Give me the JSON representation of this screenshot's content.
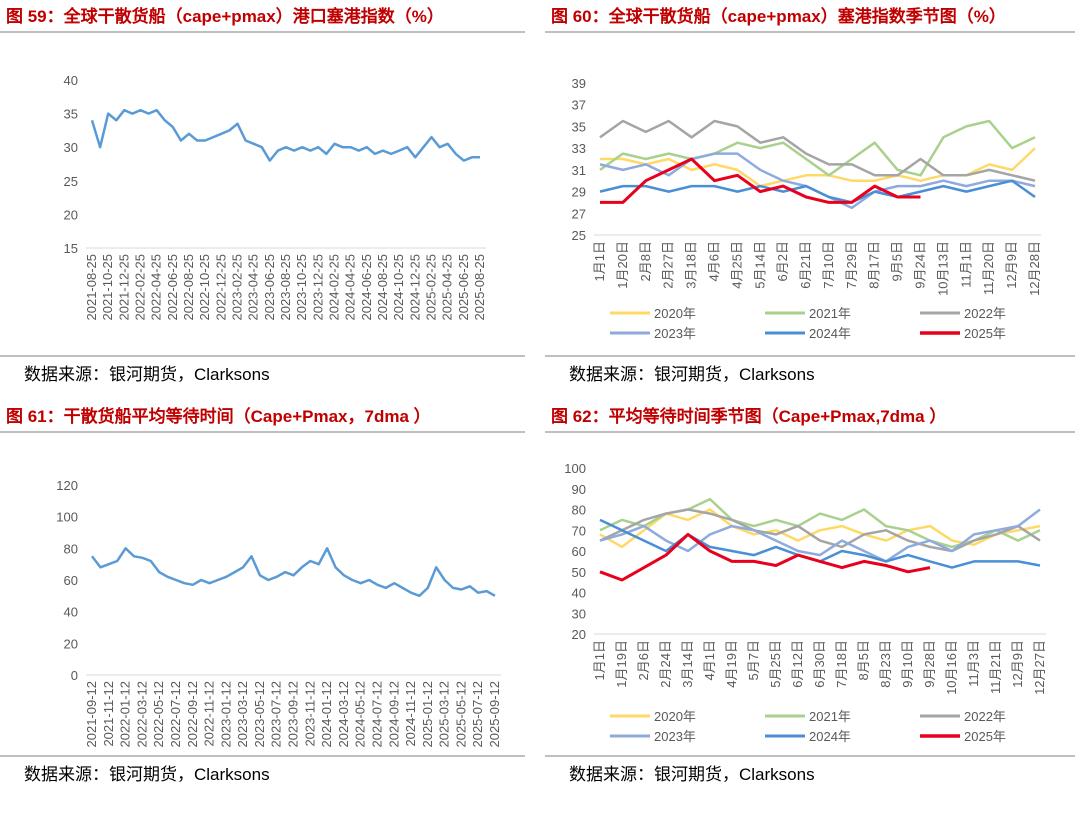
{
  "chart_data": [
    {
      "type": "line",
      "title": "图 59：全球干散货船（cape+pmax）港口塞港指数（%）",
      "source": "数据来源：银河期货，Clarksons",
      "categories": [
        "2021-08-25",
        null,
        "2021-10-25",
        null,
        "2021-12-25",
        null,
        "2022-02-25",
        null,
        "2022-04-25",
        null,
        "2022-06-25",
        null,
        "2022-08-25",
        null,
        "2022-10-25",
        null,
        "2022-12-25",
        null,
        "2023-02-25",
        null,
        "2023-04-25",
        null,
        "2023-06-25",
        null,
        "2023-08-25",
        null,
        "2023-10-25",
        null,
        "2023-12-25",
        null,
        "2024-02-25",
        null,
        "2024-04-25",
        null,
        "2024-06-25",
        null,
        "2024-08-25",
        null,
        "2024-10-25",
        null,
        "2024-12-25",
        null,
        "2025-02-25",
        null,
        "2025-04-25",
        null,
        "2025-06-25",
        null,
        "2025-08-25"
      ],
      "series": [
        {
          "name": null,
          "color": "#5b9bd5",
          "values": [
            34,
            30,
            35,
            34,
            35.5,
            35,
            35.5,
            35,
            35.5,
            34,
            33,
            31,
            32,
            31,
            31,
            31.5,
            32,
            32.5,
            33.5,
            31,
            30.5,
            30,
            28,
            29.5,
            30,
            29.5,
            30,
            29.5,
            30,
            29,
            30.5,
            30,
            30,
            29.5,
            30,
            29,
            29.5,
            29,
            29.5,
            30,
            28.5,
            30,
            31.5,
            30,
            30.5,
            29,
            28,
            28.5,
            28.5
          ]
        }
      ],
      "ylim": [
        15,
        40
      ],
      "yticks": [
        15,
        20,
        25,
        30,
        35,
        40
      ]
    },
    {
      "type": "line",
      "title": "图 60：全球干散货船（cape+pmax）塞港指数季节图（%）",
      "source": "数据来源：银河期货，Clarksons",
      "categories": [
        "1月1日",
        "1月20日",
        "2月8日",
        "2月27日",
        "3月18日",
        "4月6日",
        "4月25日",
        "5月14日",
        "6月2日",
        "6月21日",
        "7月10日",
        "7月29日",
        "8月17日",
        "9月5日",
        "9月24日",
        "10月13日",
        "11月1日",
        "11月20日",
        "12月9日",
        "12月28日"
      ],
      "series": [
        {
          "name": "2020年",
          "color": "#ffd966",
          "values": [
            32,
            32,
            31.5,
            32,
            31,
            31.5,
            31,
            29.5,
            30,
            30.5,
            30.5,
            30,
            30,
            30.5,
            30,
            30.5,
            30.5,
            31.5,
            31,
            33
          ]
        },
        {
          "name": "2021年",
          "color": "#a9d18e",
          "values": [
            31,
            32.5,
            32,
            32.5,
            32,
            32.5,
            33.5,
            33,
            33.5,
            32,
            30.5,
            32,
            33.5,
            31,
            30.5,
            34,
            35,
            35.5,
            33,
            34
          ]
        },
        {
          "name": "2022年",
          "color": "#a5a5a5",
          "values": [
            34,
            35.5,
            34.5,
            35.5,
            34,
            35.5,
            35,
            33.5,
            34,
            32.5,
            31.5,
            31.5,
            30.5,
            30.5,
            32,
            30.5,
            30.5,
            31,
            30.5,
            30
          ]
        },
        {
          "name": "2023年",
          "color": "#8faadc",
          "values": [
            31.5,
            31,
            31.5,
            30.5,
            32,
            32.5,
            32.5,
            31,
            30,
            29.5,
            28.5,
            27.5,
            29,
            29.5,
            29.5,
            30,
            29.5,
            30,
            30,
            29.5
          ]
        },
        {
          "name": "2024年",
          "color": "#4a8fd4",
          "values": [
            29,
            29.5,
            29.5,
            29,
            29.5,
            29.5,
            29,
            29.5,
            29,
            29.5,
            28.5,
            28,
            29,
            28.5,
            29,
            29.5,
            29,
            29.5,
            30,
            28.5
          ]
        },
        {
          "name": "2025年",
          "color": "#e8001c",
          "values": [
            28,
            28,
            30,
            31,
            32,
            30,
            30.5,
            29,
            29.5,
            28.5,
            28,
            28,
            29.5,
            28.5,
            28.5,
            null,
            null,
            null,
            null,
            null
          ]
        }
      ],
      "ylim": [
        25,
        39
      ],
      "yticks": [
        25,
        27,
        29,
        31,
        33,
        35,
        37,
        39
      ]
    },
    {
      "type": "line",
      "title": "图 61：干散货船平均等待时间（Cape+Pmax，7dma ）",
      "source": "数据来源：银河期货，Clarksons",
      "categories": [
        "2021-09-12",
        null,
        "2021-11-12",
        null,
        "2022-01-12",
        null,
        "2022-03-12",
        null,
        "2022-05-12",
        null,
        "2022-07-12",
        null,
        "2022-09-12",
        null,
        "2022-11-12",
        null,
        "2023-01-12",
        null,
        "2023-03-12",
        null,
        "2023-05-12",
        null,
        "2023-07-12",
        null,
        "2023-09-12",
        null,
        "2023-11-12",
        null,
        "2024-01-12",
        null,
        "2024-03-12",
        null,
        "2024-05-12",
        null,
        "2024-07-12",
        null,
        "2024-09-12",
        null,
        "2024-11-12",
        null,
        "2025-01-12",
        null,
        "2025-03-12",
        null,
        "2025-05-12",
        null,
        "2025-07-12",
        null,
        "2025-09-12"
      ],
      "series": [
        {
          "name": null,
          "color": "#5b9bd5",
          "values": [
            75,
            68,
            70,
            72,
            80,
            75,
            74,
            72,
            65,
            62,
            60,
            58,
            57,
            60,
            58,
            60,
            62,
            65,
            68,
            75,
            63,
            60,
            62,
            65,
            63,
            68,
            72,
            70,
            80,
            68,
            63,
            60,
            58,
            60,
            57,
            55,
            58,
            55,
            52,
            50,
            55,
            68,
            60,
            55,
            54,
            56,
            52,
            53,
            50
          ]
        }
      ],
      "ylim": [
        0,
        120
      ],
      "yticks": [
        0,
        20,
        40,
        60,
        80,
        100,
        120
      ]
    },
    {
      "type": "line",
      "title": "图 62：平均等待时间季节图（Cape+Pmax,7dma ）",
      "source": "数据来源：银河期货，Clarksons",
      "categories": [
        "1月1日",
        "1月19日",
        "2月6日",
        "2月24日",
        "3月14日",
        "4月1日",
        "4月19日",
        "5月7日",
        "5月25日",
        "6月12日",
        "6月30日",
        "7月18日",
        "8月5日",
        "8月23日",
        "9月10日",
        "9月28日",
        "10月16日",
        "11月3日",
        "11月21日",
        "12月9日",
        "12月27日"
      ],
      "series": [
        {
          "name": "2020年",
          "color": "#ffd966",
          "values": [
            68,
            62,
            70,
            78,
            75,
            80,
            72,
            68,
            70,
            65,
            70,
            72,
            68,
            65,
            70,
            72,
            65,
            63,
            68,
            70,
            72
          ]
        },
        {
          "name": "2021年",
          "color": "#a9d18e",
          "values": [
            70,
            75,
            72,
            78,
            80,
            85,
            75,
            72,
            75,
            72,
            78,
            75,
            80,
            72,
            70,
            65,
            62,
            65,
            70,
            65,
            70
          ]
        },
        {
          "name": "2022年",
          "color": "#a5a5a5",
          "values": [
            65,
            70,
            75,
            78,
            80,
            78,
            75,
            70,
            68,
            72,
            65,
            62,
            68,
            70,
            65,
            62,
            60,
            65,
            68,
            72,
            65
          ]
        },
        {
          "name": "2023年",
          "color": "#8faadc",
          "values": [
            65,
            68,
            72,
            65,
            60,
            68,
            72,
            70,
            65,
            60,
            58,
            65,
            60,
            55,
            62,
            65,
            60,
            68,
            70,
            72,
            80
          ]
        },
        {
          "name": "2024年",
          "color": "#4a8fd4",
          "values": [
            75,
            70,
            65,
            60,
            68,
            62,
            60,
            58,
            62,
            58,
            55,
            60,
            58,
            55,
            58,
            55,
            52,
            55,
            55,
            55,
            53
          ]
        },
        {
          "name": "2025年",
          "color": "#e8001c",
          "values": [
            50,
            46,
            52,
            58,
            68,
            60,
            55,
            55,
            53,
            58,
            55,
            52,
            55,
            53,
            50,
            52,
            null,
            null,
            null,
            null,
            null
          ]
        }
      ],
      "ylim": [
        20,
        100
      ],
      "yticks": [
        20,
        30,
        40,
        50,
        60,
        70,
        80,
        90,
        100
      ]
    }
  ]
}
